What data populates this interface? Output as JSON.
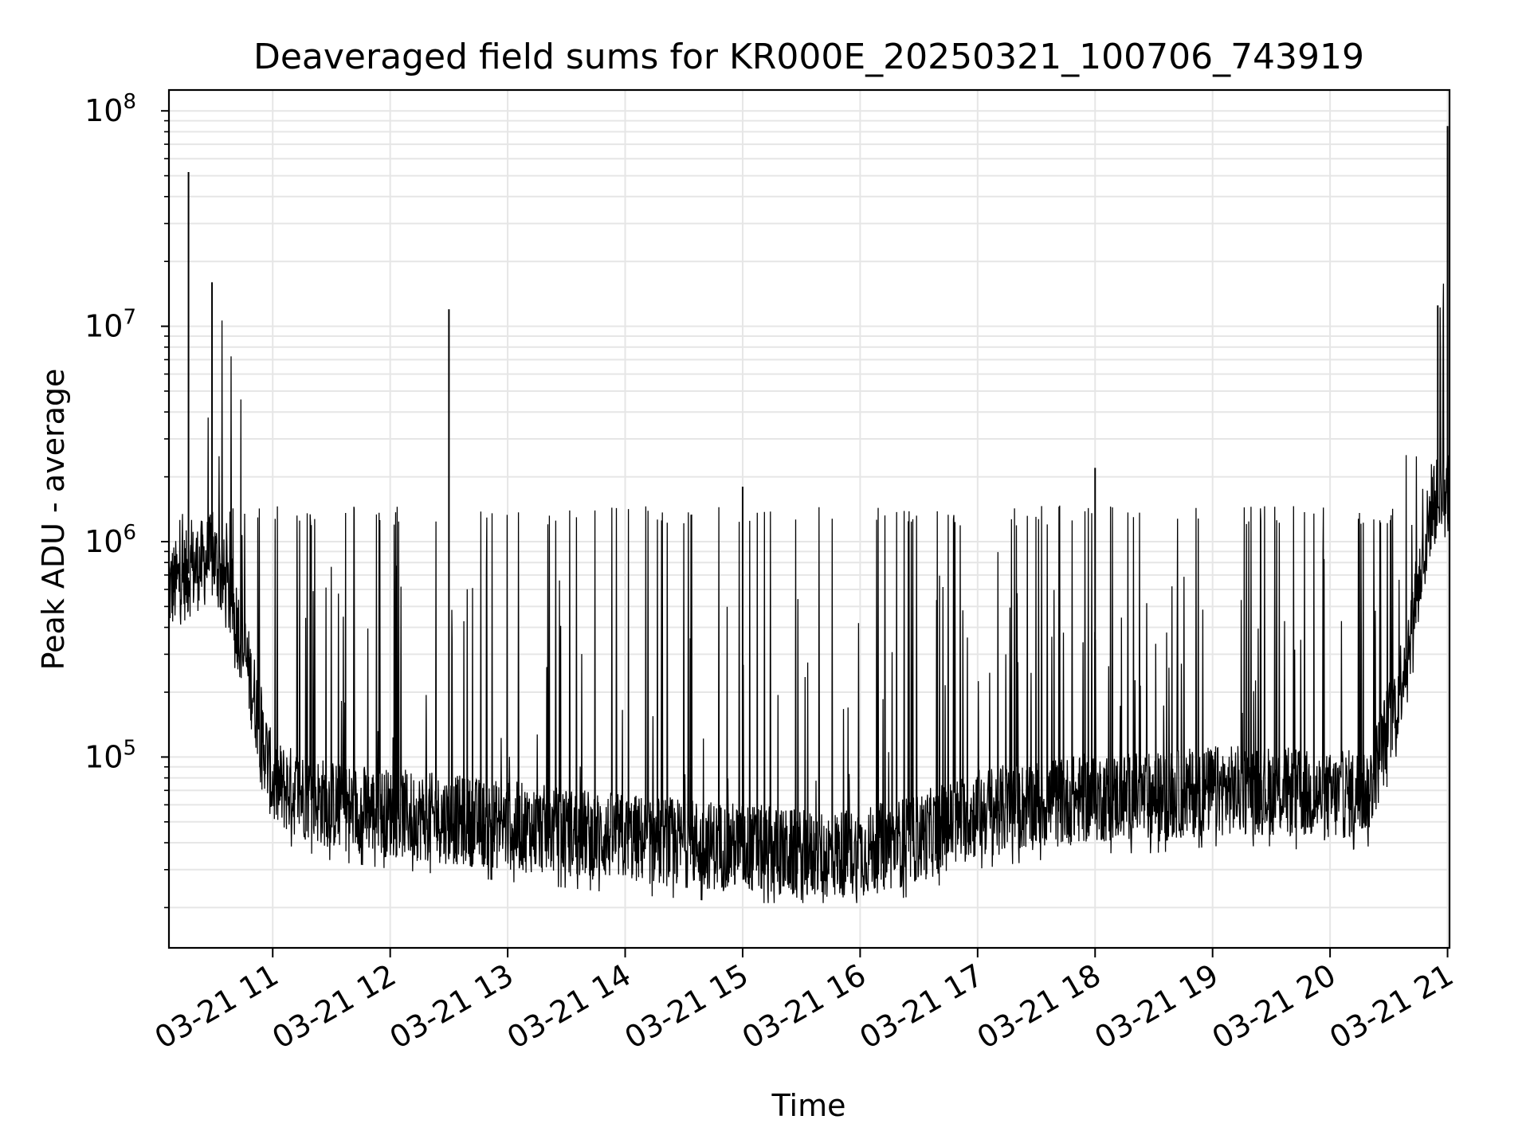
{
  "chart_data": {
    "type": "line",
    "title": "Deaveraged field sums for KR000E_20250321_100706_743919",
    "xlabel": "Time",
    "ylabel": "Peak ADU - average",
    "y_scale": "log",
    "grid": "on (major and minor)",
    "legend": "none",
    "line_color": "#000000",
    "grid_color": "#e6e6e6",
    "xlim": [
      "2025-03-21 10:07",
      "2025-03-21 21:01"
    ],
    "ylim": [
      13000,
      125000000
    ],
    "x_ticks": [
      "03-21 11",
      "03-21 12",
      "03-21 13",
      "03-21 14",
      "03-21 15",
      "03-21 16",
      "03-21 17",
      "03-21 18",
      "03-21 19",
      "03-21 20",
      "03-21 21"
    ],
    "y_ticks": [
      {
        "base": "10",
        "exp": "5",
        "value": 100000
      },
      {
        "base": "10",
        "exp": "6",
        "value": 1000000
      },
      {
        "base": "10",
        "exp": "7",
        "value": 10000000
      },
      {
        "base": "10",
        "exp": "8",
        "value": 100000000
      }
    ],
    "series": [
      {
        "baseline": [
          [
            "2025-03-21 10:07",
            600000
          ],
          [
            "2025-03-21 10:20",
            750000
          ],
          [
            "2025-03-21 10:30",
            850000
          ],
          [
            "2025-03-21 10:40",
            500000
          ],
          [
            "2025-03-21 10:50",
            200000
          ],
          [
            "2025-03-21 11:00",
            75000
          ],
          [
            "2025-03-21 11:30",
            60000
          ],
          [
            "2025-03-21 12:00",
            55000
          ],
          [
            "2025-03-21 13:00",
            48000
          ],
          [
            "2025-03-21 14:00",
            42000
          ],
          [
            "2025-03-21 15:00",
            38000
          ],
          [
            "2025-03-21 15:30",
            35000
          ],
          [
            "2025-03-21 16:00",
            36000
          ],
          [
            "2025-03-21 16:30",
            42000
          ],
          [
            "2025-03-21 17:00",
            55000
          ],
          [
            "2025-03-21 17:30",
            60000
          ],
          [
            "2025-03-21 18:00",
            65000
          ],
          [
            "2025-03-21 18:30",
            65000
          ],
          [
            "2025-03-21 19:00",
            70000
          ],
          [
            "2025-03-21 19:30",
            70000
          ],
          [
            "2025-03-21 20:00",
            65000
          ],
          [
            "2025-03-21 20:20",
            70000
          ],
          [
            "2025-03-21 20:35",
            200000
          ],
          [
            "2025-03-21 20:45",
            600000
          ],
          [
            "2025-03-21 20:52",
            1500000
          ],
          [
            "2025-03-21 21:01",
            1700000
          ]
        ],
        "spike_peak": 1400000,
        "dip_floor": 30000,
        "spike_events": [
          [
            "2025-03-21 10:17",
            52000000
          ],
          [
            "2025-03-21 10:29",
            16000000
          ],
          [
            "2025-03-21 12:30",
            12000000
          ],
          [
            "2025-03-21 18:00",
            2200000
          ],
          [
            "2025-03-21 15:00",
            1800000
          ],
          [
            "2025-03-21 20:55",
            12500000
          ],
          [
            "2025-03-21 21:00",
            85000000
          ]
        ]
      }
    ]
  }
}
